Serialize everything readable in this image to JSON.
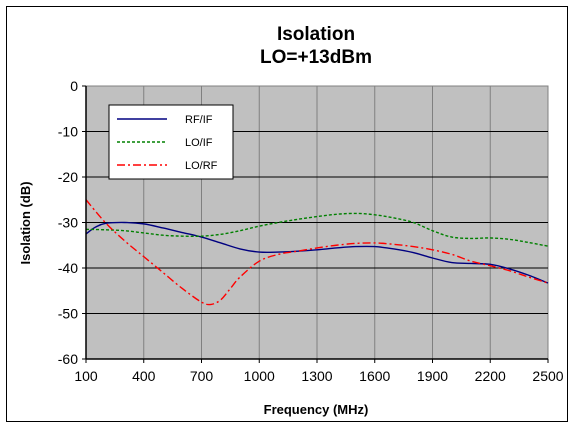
{
  "chart_data": {
    "type": "line",
    "title": [
      "Isolation",
      "LO=+13dBm"
    ],
    "xlabel": "Frequency (MHz)",
    "ylabel": "Isolation (dB)",
    "xlim": [
      100,
      2500
    ],
    "ylim": [
      -60,
      0
    ],
    "xticks": [
      100,
      400,
      700,
      1000,
      1300,
      1600,
      1900,
      2200,
      2500
    ],
    "yticks": [
      0,
      -10,
      -20,
      -30,
      -40,
      -50,
      -60
    ],
    "grid": true,
    "legend_position": "top-left",
    "plot_background": "#c0c0c0",
    "series": [
      {
        "name": "RF/IF",
        "color": "#000080",
        "dash": "solid",
        "x": [
          100,
          150,
          200,
          300,
          400,
          500,
          600,
          700,
          800,
          900,
          1000,
          1100,
          1200,
          1300,
          1400,
          1500,
          1600,
          1700,
          1800,
          1900,
          2000,
          2100,
          2200,
          2300,
          2400,
          2500
        ],
        "y": [
          -32.5,
          -31.0,
          -30.2,
          -30.0,
          -30.3,
          -31.2,
          -32.2,
          -33.2,
          -34.5,
          -35.8,
          -36.5,
          -36.5,
          -36.3,
          -36.0,
          -35.6,
          -35.3,
          -35.3,
          -35.8,
          -36.6,
          -37.8,
          -38.8,
          -39.0,
          -39.2,
          -40.2,
          -41.6,
          -43.3
        ]
      },
      {
        "name": "LO/IF",
        "color": "#008000",
        "dash": "dotted",
        "x": [
          100,
          200,
          300,
          400,
          500,
          600,
          700,
          800,
          900,
          1000,
          1100,
          1200,
          1300,
          1400,
          1500,
          1600,
          1700,
          1800,
          1900,
          2000,
          2100,
          2200,
          2300,
          2400,
          2500
        ],
        "y": [
          -31.5,
          -31.6,
          -31.8,
          -32.3,
          -32.8,
          -33.0,
          -33.0,
          -32.6,
          -31.8,
          -30.8,
          -30.0,
          -29.3,
          -28.7,
          -28.2,
          -28.0,
          -28.3,
          -29.0,
          -30.0,
          -31.8,
          -33.2,
          -33.5,
          -33.4,
          -33.7,
          -34.4,
          -35.2
        ]
      },
      {
        "name": "LO/RF",
        "color": "#ff0000",
        "dash": "dashdot",
        "x": [
          100,
          200,
          300,
          400,
          500,
          600,
          700,
          750,
          800,
          850,
          900,
          1000,
          1100,
          1200,
          1300,
          1400,
          1500,
          1600,
          1700,
          1800,
          1900,
          2000,
          2100,
          2200,
          2300,
          2400,
          2500
        ],
        "y": [
          -25.0,
          -30.0,
          -34.0,
          -37.5,
          -41.0,
          -44.5,
          -47.5,
          -48.0,
          -47.0,
          -44.5,
          -42.0,
          -38.5,
          -37.0,
          -36.3,
          -35.6,
          -35.0,
          -34.6,
          -34.5,
          -34.8,
          -35.3,
          -36.0,
          -37.0,
          -38.5,
          -39.5,
          -40.6,
          -42.0,
          -43.3
        ]
      }
    ]
  }
}
